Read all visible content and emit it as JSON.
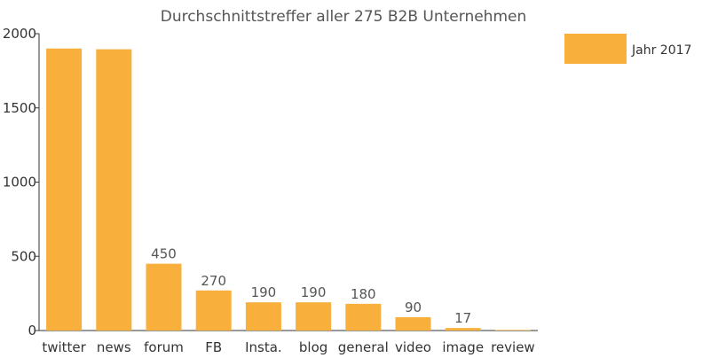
{
  "chart_data": {
    "type": "bar",
    "title": "Durchschnittstreffer aller 275 B2B Unternehmen",
    "xlabel": "",
    "ylabel": "",
    "categories": [
      "twitter",
      "news",
      "forum",
      "FB",
      "Insta.",
      "blog",
      "general",
      "video",
      "image",
      "review"
    ],
    "series": [
      {
        "name": "Jahr 2017",
        "values": [
          1900,
          1895,
          450,
          270,
          190,
          190,
          180,
          90,
          17,
          4
        ],
        "data_labels": [
          "",
          "",
          "450",
          "270",
          "190",
          "190",
          "180",
          "90",
          "17",
          ""
        ]
      }
    ],
    "ylim": [
      0,
      2000
    ],
    "yticks": [
      0,
      500,
      1000,
      1500,
      2000
    ],
    "grid": false,
    "legend_position": "top-right",
    "bar_color": "#F8AF3C"
  }
}
